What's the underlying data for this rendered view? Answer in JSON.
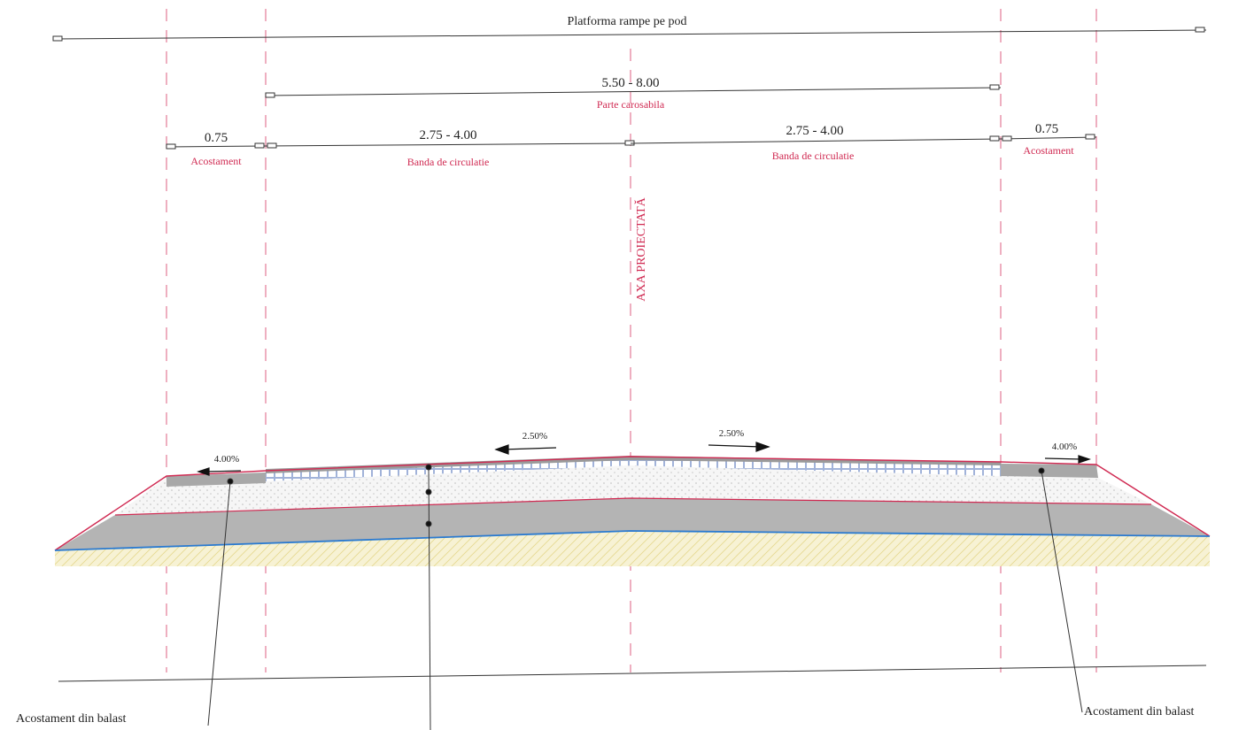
{
  "drawing": {
    "platform_label": "Platforma rampe pe pod",
    "carriageway_width": "5.50 - 8.00",
    "carriageway_label": "Parte carosabila",
    "lane_width_left": "2.75 - 4.00",
    "lane_width_right": "2.75 - 4.00",
    "lane_label_left": "Banda de circulatie",
    "lane_label_right": "Banda de circulatie",
    "shoulder_width_left": "0.75",
    "shoulder_width_right": "0.75",
    "shoulder_label_left": "Acostament",
    "shoulder_label_right": "Acostament",
    "axis_label": "AXA PROIECTATĂ",
    "slope_lane_left": "2.50%",
    "slope_lane_right": "2.50%",
    "slope_shoulder_left": "4.00%",
    "slope_shoulder_right": "4.00%",
    "callout_left": "Acostament din balast",
    "callout_right": "Acostament din balast"
  },
  "colors": {
    "axis_red": "#d02a52",
    "subgrade_blue": "#2a7ad0",
    "pavement_gray": "#a8a8a8",
    "base_gray": "#b4b4b4",
    "soil_yellow": "#f2ecc6"
  }
}
